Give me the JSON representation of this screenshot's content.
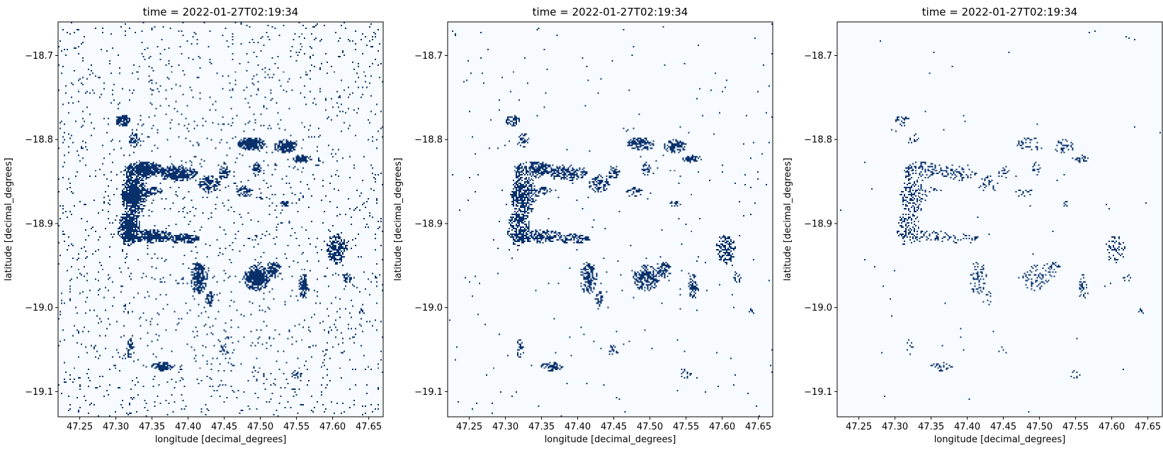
{
  "chart_data": [
    {
      "type": "heatmap",
      "title": "time = 2022-01-27T02:19:34",
      "xlabel": "longitude [decimal_degrees]",
      "ylabel": "latitude [decimal_degrees]",
      "xlim": [
        47.22,
        47.67
      ],
      "ylim": [
        -19.13,
        -18.66
      ],
      "xticks": [
        47.25,
        47.3,
        47.35,
        47.4,
        47.45,
        47.5,
        47.55,
        47.6,
        47.65
      ],
      "xtick_labels": [
        "47.25",
        "47.30",
        "47.35",
        "47.40",
        "47.45",
        "47.50",
        "47.55",
        "47.60",
        "47.65"
      ],
      "yticks": [
        -18.7,
        -18.8,
        -18.9,
        -19.0,
        -19.1
      ],
      "ytick_labels": [
        "−18.7",
        "−18.8",
        "−18.9",
        "−19.0",
        "−19.1"
      ],
      "colormap": [
        "#f7fbff",
        "#08306b"
      ],
      "noise": 0.03,
      "density": 1.0
    },
    {
      "type": "heatmap",
      "title": "time = 2022-01-27T02:19:34",
      "xlabel": "longitude [decimal_degrees]",
      "ylabel": "latitude [decimal_degrees]",
      "xlim": [
        47.22,
        47.67
      ],
      "ylim": [
        -19.13,
        -18.66
      ],
      "xticks": [
        47.25,
        47.3,
        47.35,
        47.4,
        47.45,
        47.5,
        47.55,
        47.6,
        47.65
      ],
      "xtick_labels": [
        "47.25",
        "47.30",
        "47.35",
        "47.40",
        "47.45",
        "47.50",
        "47.55",
        "47.60",
        "47.65"
      ],
      "yticks": [
        -18.7,
        -18.8,
        -18.9,
        -19.0,
        -19.1
      ],
      "ytick_labels": [
        "−18.7",
        "−18.8",
        "−18.9",
        "−19.0",
        "−19.1"
      ],
      "colormap": [
        "#f7fbff",
        "#08306b"
      ],
      "noise": 0.004,
      "density": 0.75
    },
    {
      "type": "heatmap",
      "title": "time = 2022-01-27T02:19:34",
      "xlabel": "longitude [decimal_degrees]",
      "ylabel": "latitude [decimal_degrees]",
      "xlim": [
        47.22,
        47.67
      ],
      "ylim": [
        -19.13,
        -18.66
      ],
      "xticks": [
        47.25,
        47.3,
        47.35,
        47.4,
        47.45,
        47.5,
        47.55,
        47.6,
        47.65
      ],
      "xtick_labels": [
        "47.25",
        "47.30",
        "47.35",
        "47.40",
        "47.45",
        "47.50",
        "47.55",
        "47.60",
        "47.65"
      ],
      "yticks": [
        -18.7,
        -18.8,
        -18.9,
        -19.0,
        -19.1
      ],
      "ytick_labels": [
        "−18.7",
        "−18.8",
        "−18.9",
        "−19.0",
        "−19.1"
      ],
      "colormap": [
        "#f7fbff",
        "#08306b"
      ],
      "noise": 0.001,
      "density": 0.35
    }
  ]
}
